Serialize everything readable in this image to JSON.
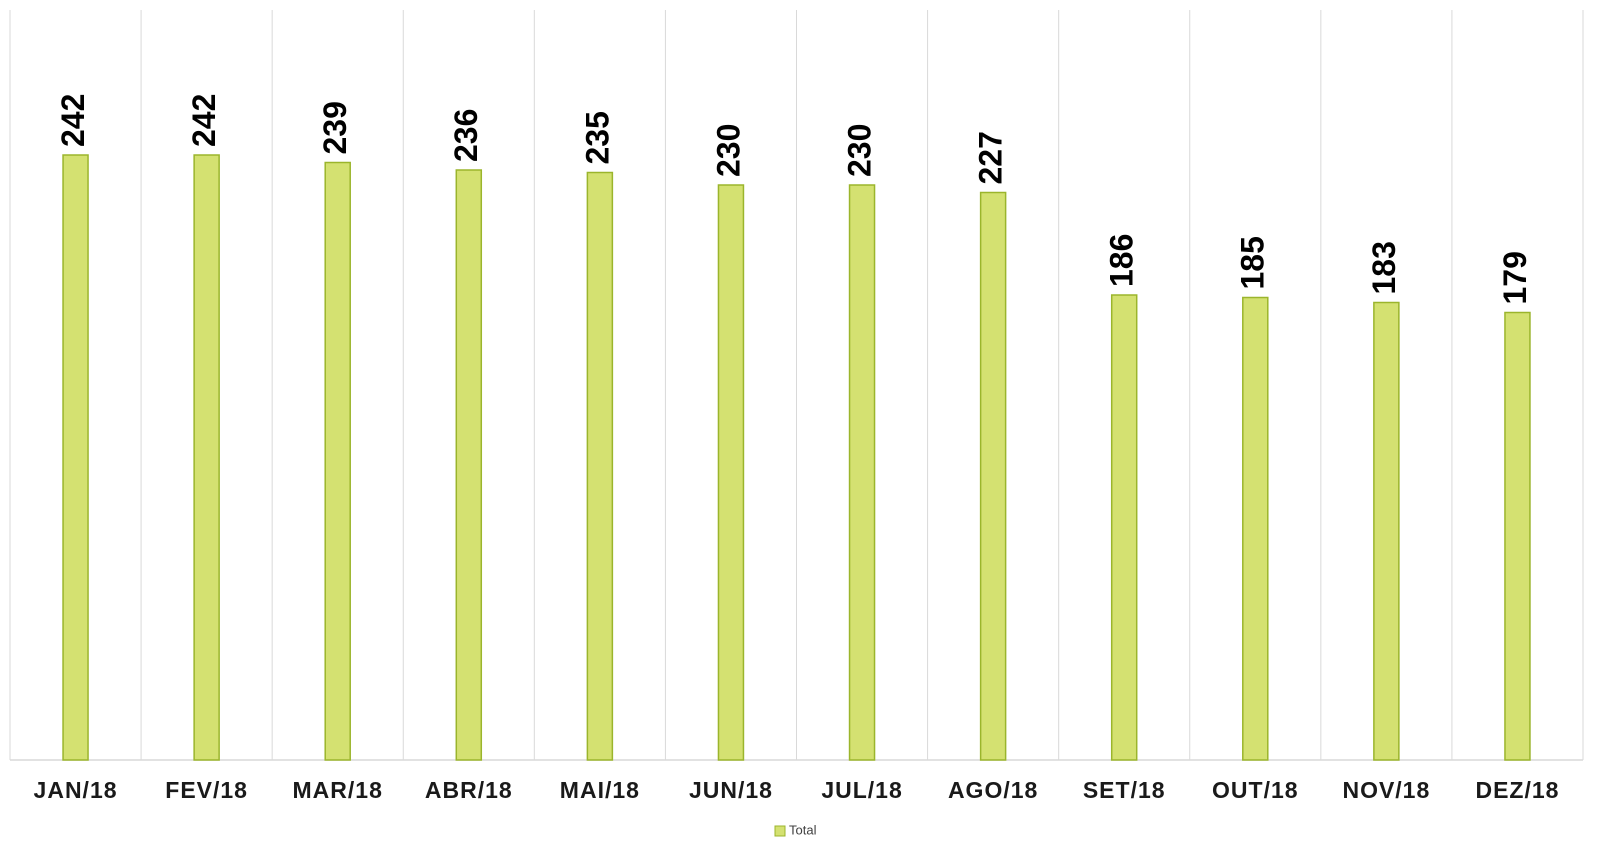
{
  "chart_data": {
    "type": "bar",
    "categories": [
      "JAN/18",
      "FEV/18",
      "MAR/18",
      "ABR/18",
      "MAI/18",
      "JUN/18",
      "JUL/18",
      "AGO/18",
      "SET/18",
      "OUT/18",
      "NOV/18",
      "DEZ/18"
    ],
    "series": [
      {
        "name": "Total",
        "color": "#d4e171",
        "values": [
          242,
          242,
          239,
          236,
          235,
          230,
          230,
          227,
          186,
          185,
          183,
          179
        ]
      }
    ],
    "ylim": [
      0,
      300
    ],
    "legend": "bottom"
  }
}
